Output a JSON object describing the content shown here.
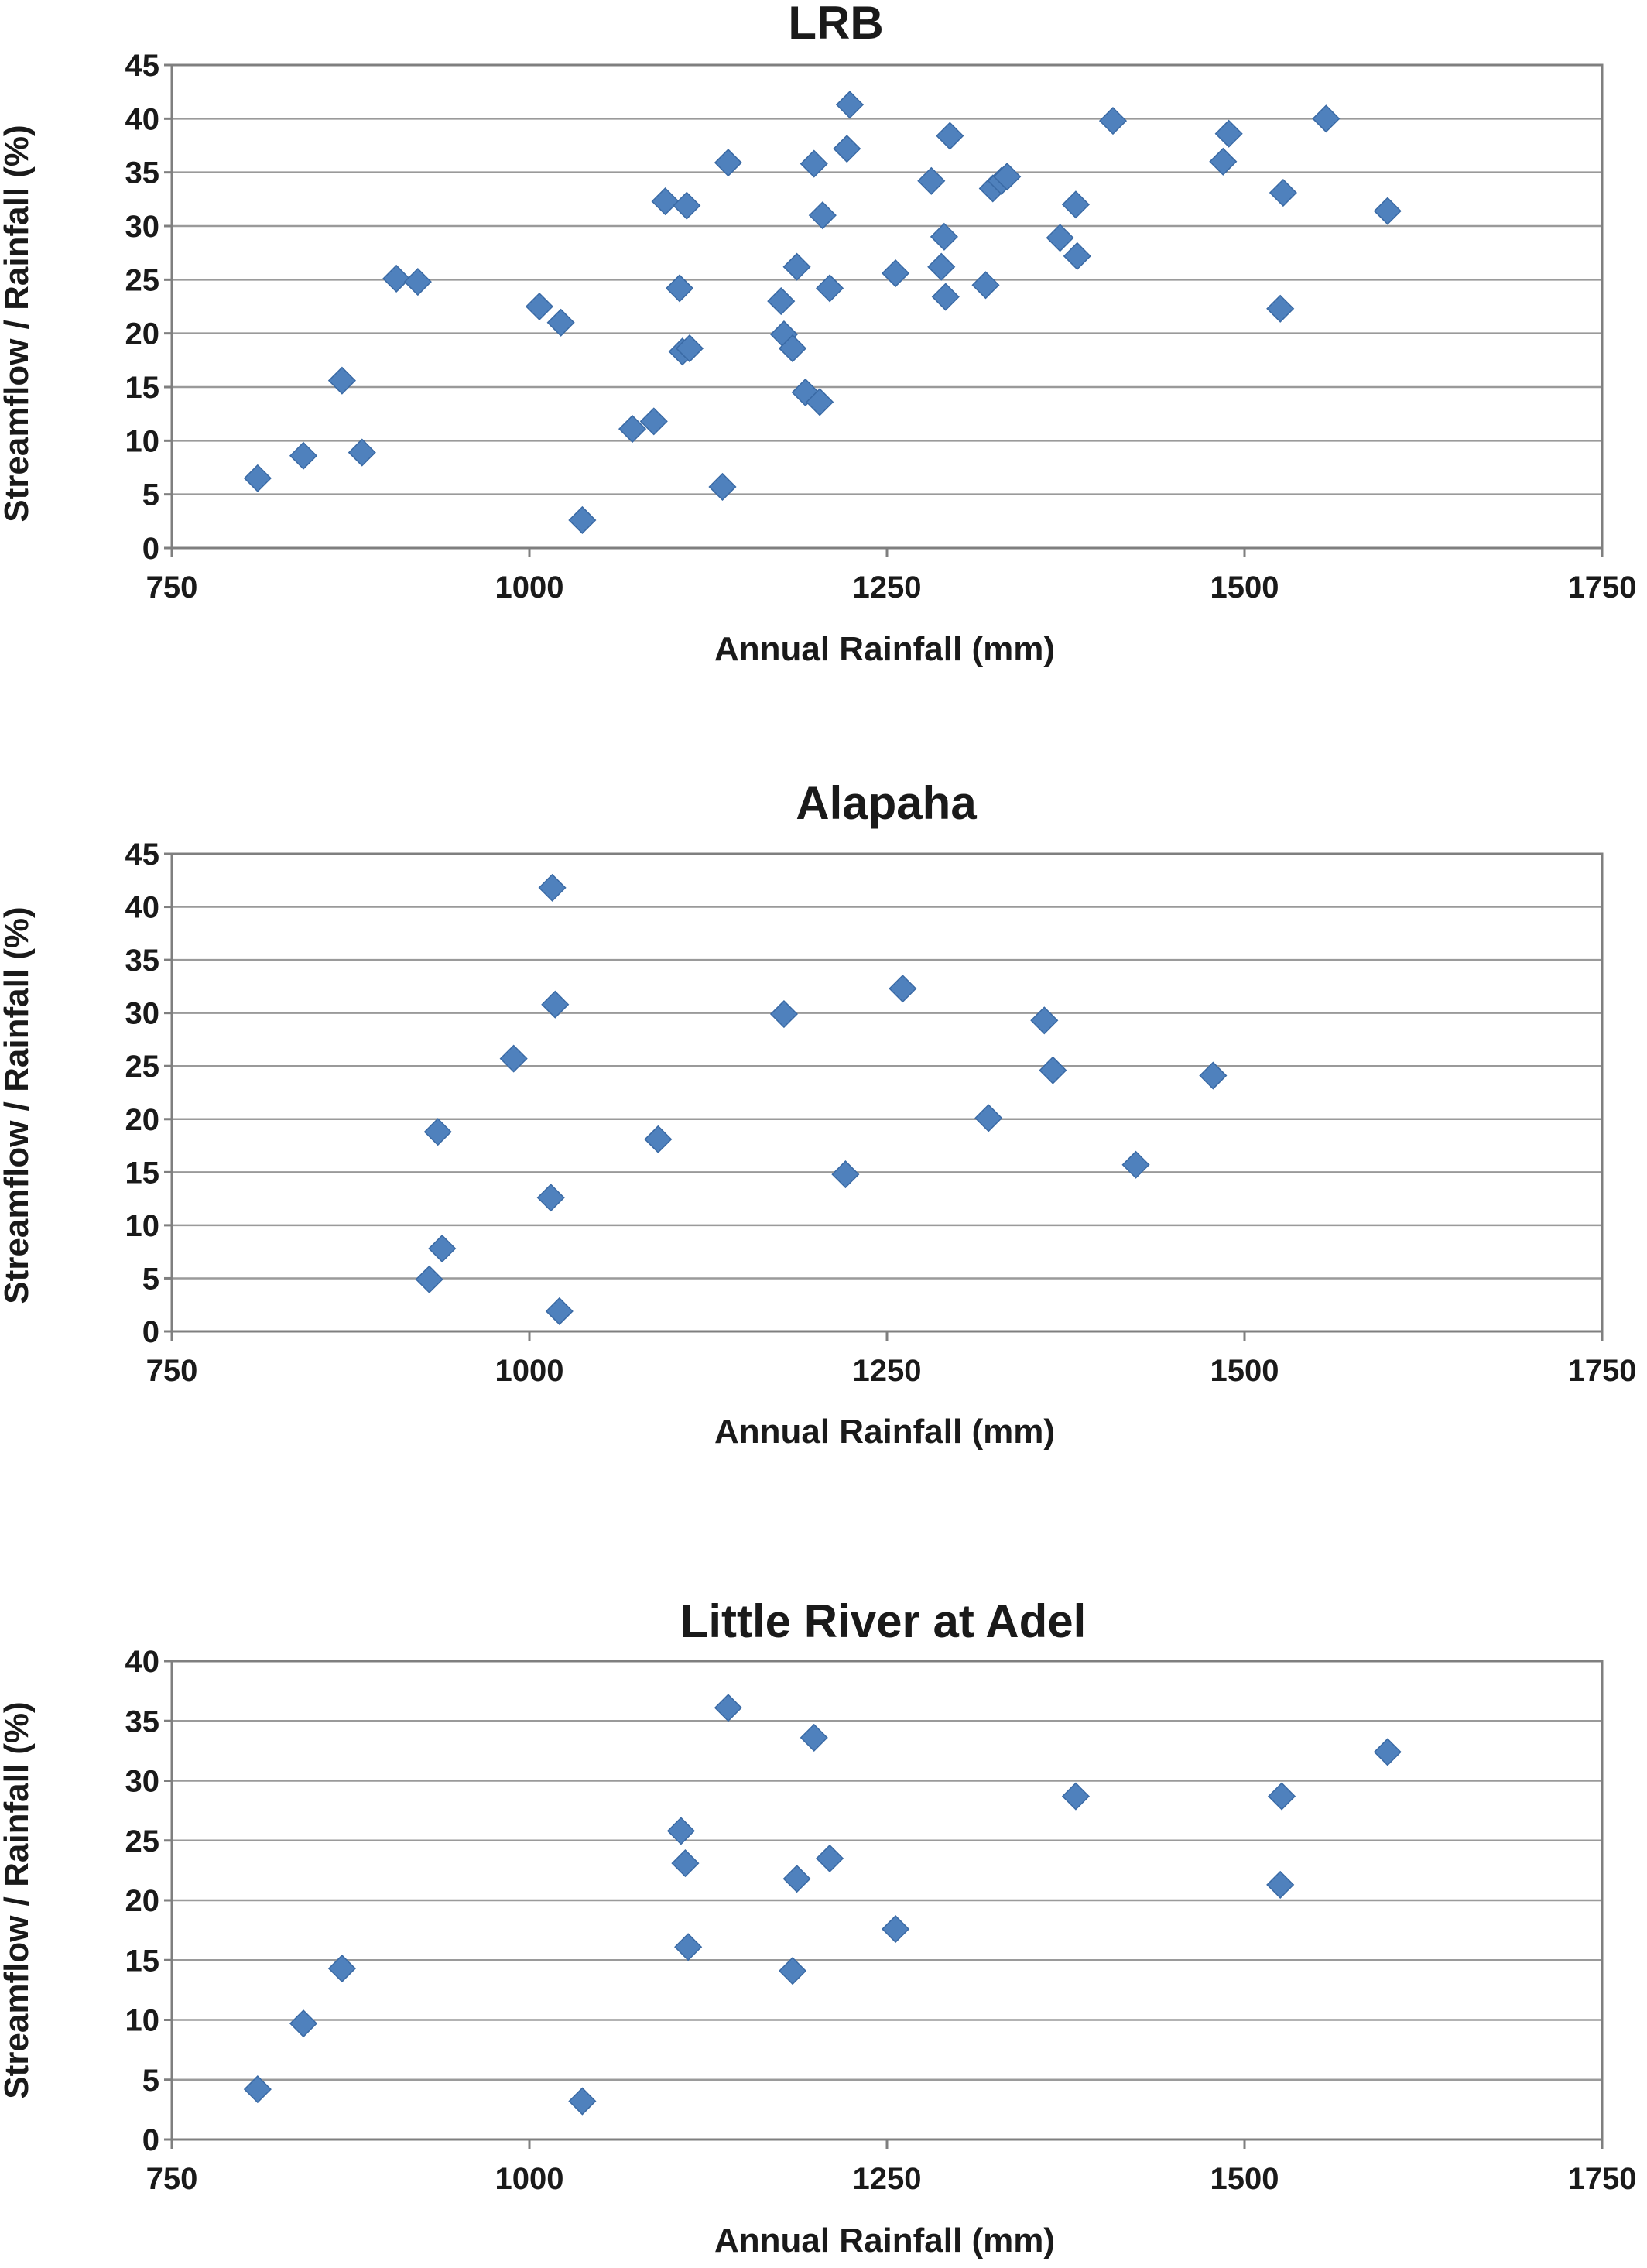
{
  "colors": {
    "marker": "#4F81BD",
    "marker_stroke": "#3A6AA5",
    "grid": "#9a9a9a",
    "text": "#1a1a1a"
  },
  "chart_data": [
    {
      "type": "scatter",
      "title": "LRB",
      "xlabel": "Annual Rainfall (mm)",
      "ylabel": "Streamflow / Rainfall (%)",
      "xlim": [
        750,
        1750
      ],
      "ylim": [
        0,
        45
      ],
      "xticks": [
        750,
        1000,
        1250,
        1500,
        1750
      ],
      "yticks": [
        0,
        5,
        10,
        15,
        20,
        25,
        30,
        35,
        40,
        45
      ],
      "grid": "horizontal",
      "points": [
        [
          810,
          6.5
        ],
        [
          842,
          8.6
        ],
        [
          869,
          15.6
        ],
        [
          883,
          8.9
        ],
        [
          907,
          25.1
        ],
        [
          922,
          24.8
        ],
        [
          1007,
          22.5
        ],
        [
          1022,
          21.0
        ],
        [
          1037,
          2.6
        ],
        [
          1072,
          11.1
        ],
        [
          1087,
          11.8
        ],
        [
          1095,
          32.3
        ],
        [
          1105,
          24.2
        ],
        [
          1107,
          18.3
        ],
        [
          1110,
          31.9
        ],
        [
          1112,
          18.6
        ],
        [
          1135,
          5.7
        ],
        [
          1139,
          35.9
        ],
        [
          1176,
          23.0
        ],
        [
          1178,
          19.9
        ],
        [
          1184,
          18.6
        ],
        [
          1187,
          26.2
        ],
        [
          1193,
          14.5
        ],
        [
          1199,
          35.8
        ],
        [
          1203,
          13.6
        ],
        [
          1205,
          31.0
        ],
        [
          1210,
          24.2
        ],
        [
          1222,
          37.2
        ],
        [
          1224,
          41.3
        ],
        [
          1256,
          25.6
        ],
        [
          1281,
          34.2
        ],
        [
          1288,
          26.2
        ],
        [
          1290,
          29.0
        ],
        [
          1291,
          23.4
        ],
        [
          1294,
          38.4
        ],
        [
          1319,
          24.5
        ],
        [
          1324,
          33.5
        ],
        [
          1330,
          34.2
        ],
        [
          1334,
          34.6
        ],
        [
          1371,
          28.9
        ],
        [
          1382,
          32.0
        ],
        [
          1383,
          27.2
        ],
        [
          1408,
          39.8
        ],
        [
          1485,
          36.0
        ],
        [
          1489,
          38.6
        ],
        [
          1525,
          22.3
        ],
        [
          1527,
          33.1
        ],
        [
          1557,
          40.0
        ],
        [
          1600,
          31.4
        ]
      ]
    },
    {
      "type": "scatter",
      "title": "Alapaha",
      "xlabel": "Annual Rainfall (mm)",
      "ylabel": "Streamflow / Rainfall (%)",
      "xlim": [
        750,
        1750
      ],
      "ylim": [
        0,
        45
      ],
      "xticks": [
        750,
        1000,
        1250,
        1500,
        1750
      ],
      "yticks": [
        0,
        5,
        10,
        15,
        20,
        25,
        30,
        35,
        40,
        45
      ],
      "grid": "horizontal",
      "points": [
        [
          930,
          4.9
        ],
        [
          936,
          18.8
        ],
        [
          939,
          7.8
        ],
        [
          989,
          25.7
        ],
        [
          1015,
          12.6
        ],
        [
          1016,
          41.8
        ],
        [
          1018,
          30.8
        ],
        [
          1021,
          1.9
        ],
        [
          1090,
          18.1
        ],
        [
          1178,
          29.9
        ],
        [
          1221,
          14.8
        ],
        [
          1261,
          32.3
        ],
        [
          1321,
          20.1
        ],
        [
          1360,
          29.3
        ],
        [
          1366,
          24.6
        ],
        [
          1424,
          15.7
        ],
        [
          1478,
          24.1
        ]
      ]
    },
    {
      "type": "scatter",
      "title": "Little River at Adel",
      "xlabel": "Annual Rainfall (mm)",
      "ylabel": "Streamflow / Rainfall (%)",
      "xlim": [
        750,
        1750
      ],
      "ylim": [
        0,
        40
      ],
      "xticks": [
        750,
        1000,
        1250,
        1500,
        1750
      ],
      "yticks": [
        0,
        5,
        10,
        15,
        20,
        25,
        30,
        35,
        40
      ],
      "grid": "horizontal",
      "points": [
        [
          810,
          4.2
        ],
        [
          842,
          9.7
        ],
        [
          869,
          14.3
        ],
        [
          1037,
          3.2
        ],
        [
          1106,
          25.8
        ],
        [
          1109,
          23.1
        ],
        [
          1111,
          16.1
        ],
        [
          1139,
          36.1
        ],
        [
          1184,
          14.1
        ],
        [
          1187,
          21.8
        ],
        [
          1199,
          33.6
        ],
        [
          1210,
          23.5
        ],
        [
          1256,
          17.6
        ],
        [
          1382,
          28.7
        ],
        [
          1526,
          28.7
        ],
        [
          1525,
          21.3
        ],
        [
          1600,
          32.4
        ]
      ]
    }
  ]
}
